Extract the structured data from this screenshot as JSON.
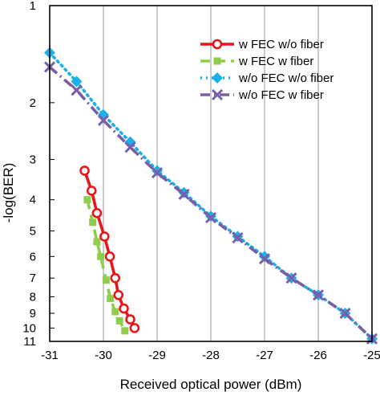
{
  "chart_data": {
    "type": "line",
    "xlabel": "Received optical power (dBm)",
    "ylabel": "-log(BER)",
    "xlim": [
      -31,
      -25
    ],
    "ylim": [
      1,
      11
    ],
    "y_scale": "log (inverted, 1 at top)",
    "grid": "vertical gridlines at x ticks",
    "legend_position": "top-right",
    "x_ticks": [
      -31,
      -30,
      -29,
      -28,
      -27,
      -26,
      -25
    ],
    "x_tick_labels": [
      "-31",
      "-30",
      "-29",
      "-28",
      "-27",
      "-26",
      "-25"
    ],
    "y_ticks": [
      1,
      2,
      3,
      4,
      5,
      6,
      7,
      8,
      9,
      10,
      11
    ],
    "y_tick_labels": [
      "1",
      "2",
      "3",
      "4",
      "5",
      "6",
      "7",
      "8",
      "9",
      "10",
      "11"
    ],
    "series": [
      {
        "name": "w FEC w/o fiber",
        "color": "#e8161b",
        "marker": "open-circle",
        "line": "solid",
        "x": [
          -30.35,
          -30.22,
          -30.12,
          -29.98,
          -29.88,
          -29.78,
          -29.72,
          -29.62,
          -29.5,
          -29.42
        ],
        "y": [
          3.25,
          3.75,
          4.4,
          5.2,
          6.0,
          7.0,
          7.9,
          8.7,
          9.4,
          10.0
        ]
      },
      {
        "name": "w FEC w fiber",
        "color": "#8fcd4c",
        "marker": "square",
        "line": "dashed",
        "x": [
          -30.3,
          -30.2,
          -30.12,
          -30.05,
          -29.95,
          -29.87,
          -29.78,
          -29.7,
          -29.6
        ],
        "y": [
          4.0,
          4.7,
          5.4,
          6.0,
          7.1,
          8.1,
          8.9,
          9.5,
          10.2
        ]
      },
      {
        "name": "w/o FEC w/o fiber",
        "color": "#1ab0ea",
        "marker": "diamond",
        "line": "dotted",
        "x": [
          -31.0,
          -30.5,
          -30.0,
          -29.5,
          -29.0,
          -28.5,
          -28.0,
          -27.5,
          -27.0,
          -26.5,
          -26.0,
          -25.5,
          -25.0
        ],
        "y": [
          1.4,
          1.72,
          2.18,
          2.65,
          3.25,
          3.8,
          4.5,
          5.2,
          6.0,
          7.0,
          7.9,
          9.0,
          10.8
        ]
      },
      {
        "name": "w/o FEC w fiber",
        "color": "#7b5ea8",
        "marker": "x",
        "line": "dash-dot",
        "x": [
          -31.0,
          -30.5,
          -30.0,
          -29.5,
          -29.0,
          -28.5,
          -28.0,
          -27.5,
          -27.0,
          -26.5,
          -26.0,
          -25.5,
          -25.0
        ],
        "y": [
          1.55,
          1.83,
          2.27,
          2.75,
          3.3,
          3.85,
          4.55,
          5.25,
          6.1,
          7.0,
          7.9,
          9.0,
          10.8
        ]
      }
    ]
  }
}
